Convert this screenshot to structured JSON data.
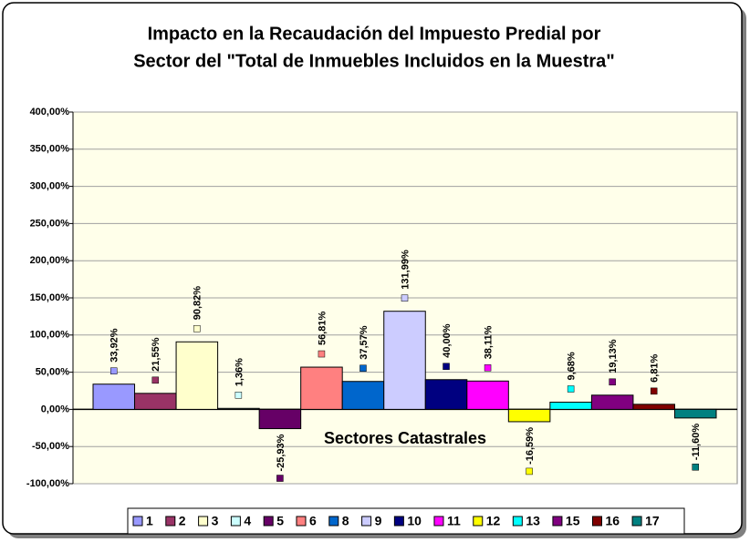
{
  "chart_data": {
    "type": "bar",
    "title": "Impacto en la Recaudación del Impuesto Predial por",
    "subtitle": "Sector del \"Total de Inmuebles Incluidos en la Muestra\"",
    "x_label": "Sectores Catastrales",
    "ylim": [
      -100,
      400
    ],
    "yticks": [
      {
        "value": -100,
        "label": "-100,00%"
      },
      {
        "value": -50,
        "label": "-50,00%"
      },
      {
        "value": 0,
        "label": "0,00%"
      },
      {
        "value": 50,
        "label": "50,00%"
      },
      {
        "value": 100,
        "label": "100,00%"
      },
      {
        "value": 150,
        "label": "150,00%"
      },
      {
        "value": 200,
        "label": "200,00%"
      },
      {
        "value": 250,
        "label": "250,00%"
      },
      {
        "value": 300,
        "label": "300,00%"
      },
      {
        "value": 350,
        "label": "350,00%"
      },
      {
        "value": 400,
        "label": "400,00%"
      }
    ],
    "grid": true,
    "legend": "bottom",
    "series": [
      {
        "name": "1",
        "color": "#9999ff",
        "values": [
          33.92
        ],
        "value_labels": [
          "33,92%"
        ]
      },
      {
        "name": "2",
        "color": "#993366",
        "values": [
          21.55
        ],
        "value_labels": [
          "21,55%"
        ]
      },
      {
        "name": "3",
        "color": "#ffffcc",
        "values": [
          90.82
        ],
        "value_labels": [
          "90,82%"
        ]
      },
      {
        "name": "4",
        "color": "#ccffff",
        "values": [
          1.36
        ],
        "value_labels": [
          "1,36%"
        ]
      },
      {
        "name": "5",
        "color": "#660066",
        "values": [
          -25.93
        ],
        "value_labels": [
          "-25,93%"
        ]
      },
      {
        "name": "6",
        "color": "#ff8080",
        "values": [
          56.81
        ],
        "value_labels": [
          "56,81%"
        ]
      },
      {
        "name": "8",
        "color": "#0066cc",
        "values": [
          37.57
        ],
        "value_labels": [
          "37,57%"
        ]
      },
      {
        "name": "9",
        "color": "#ccccff",
        "values": [
          131.99
        ],
        "value_labels": [
          "131,99%"
        ]
      },
      {
        "name": "10",
        "color": "#000080",
        "values": [
          40.0
        ],
        "value_labels": [
          "40,00%"
        ]
      },
      {
        "name": "11",
        "color": "#ff00ff",
        "values": [
          38.11
        ],
        "value_labels": [
          "38,11%"
        ]
      },
      {
        "name": "12",
        "color": "#ffff00",
        "values": [
          -16.59
        ],
        "value_labels": [
          "-16,59%"
        ]
      },
      {
        "name": "13",
        "color": "#00ffff",
        "values": [
          9.68
        ],
        "value_labels": [
          "9,68%"
        ]
      },
      {
        "name": "15",
        "color": "#800080",
        "values": [
          19.13
        ],
        "value_labels": [
          "19,13%"
        ]
      },
      {
        "name": "16",
        "color": "#800000",
        "values": [
          6.81
        ],
        "value_labels": [
          "6,81%"
        ]
      },
      {
        "name": "17",
        "color": "#008080",
        "values": [
          -11.6
        ],
        "value_labels": [
          "-11,60%"
        ]
      }
    ]
  }
}
